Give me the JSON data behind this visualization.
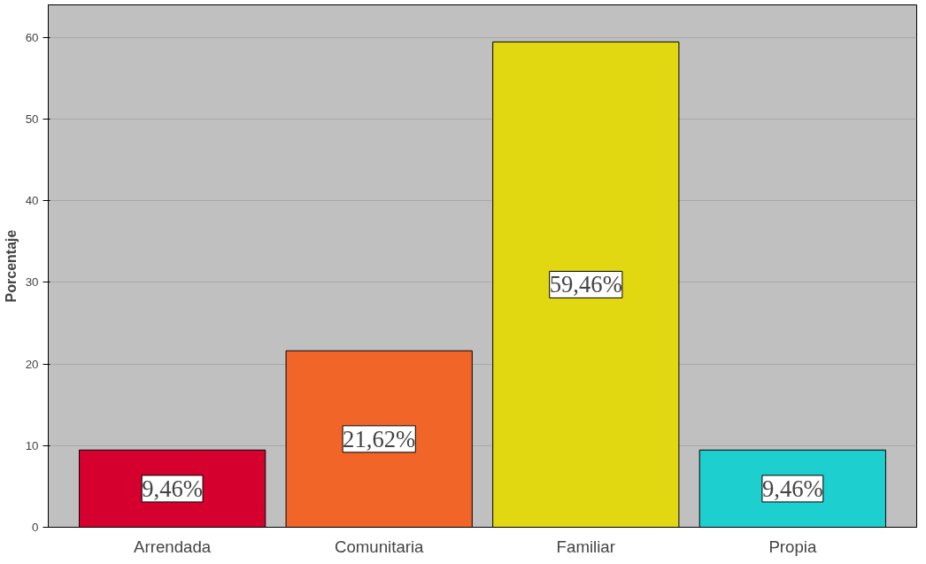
{
  "chart_data": {
    "type": "bar",
    "ylabel": "Porcentaje",
    "categories": [
      "Arrendada",
      "Comunitaria",
      "Familiar",
      "Propia"
    ],
    "values": [
      9.46,
      21.62,
      59.46,
      9.46
    ],
    "colors": [
      "#d6002e",
      "#f26529",
      "#e2d811",
      "#1ecfcf"
    ],
    "value_labels": [
      "9,46%",
      "21,62%",
      "59,46%",
      "9,46%"
    ],
    "ylim": [
      0,
      64
    ],
    "yticks": [
      0,
      10,
      20,
      30,
      40,
      50,
      60
    ],
    "grid": "y"
  }
}
